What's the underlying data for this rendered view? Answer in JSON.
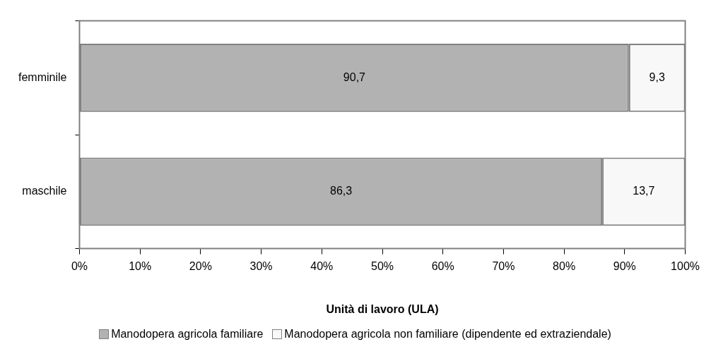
{
  "chart_data": {
    "type": "bar",
    "orientation": "horizontal",
    "stacked": true,
    "xlabel": "Unità di lavoro (ULA)",
    "categories": [
      "femminile",
      "maschile"
    ],
    "series": [
      {
        "name": "Manodopera agricola familiare",
        "color": "#b2b2b2",
        "values": [
          90.7,
          86.3
        ],
        "value_labels": [
          "90,7",
          "86,3"
        ]
      },
      {
        "name": "Manodopera agricola non familiare (dipendente ed extraziendale)",
        "color": "#f8f8f8",
        "values": [
          9.3,
          13.7
        ],
        "value_labels": [
          "9,3",
          "13,7"
        ]
      }
    ],
    "xlim": [
      0,
      100
    ],
    "xticks": [
      {
        "value": 0,
        "label": "0%"
      },
      {
        "value": 10,
        "label": "10%"
      },
      {
        "value": 20,
        "label": "20%"
      },
      {
        "value": 30,
        "label": "30%"
      },
      {
        "value": 40,
        "label": "40%"
      },
      {
        "value": 50,
        "label": "50%"
      },
      {
        "value": 60,
        "label": "60%"
      },
      {
        "value": 70,
        "label": "70%"
      },
      {
        "value": 80,
        "label": "80%"
      },
      {
        "value": 90,
        "label": "90%"
      },
      {
        "value": 100,
        "label": "100%"
      }
    ],
    "grid": false,
    "legend": "bottom"
  }
}
